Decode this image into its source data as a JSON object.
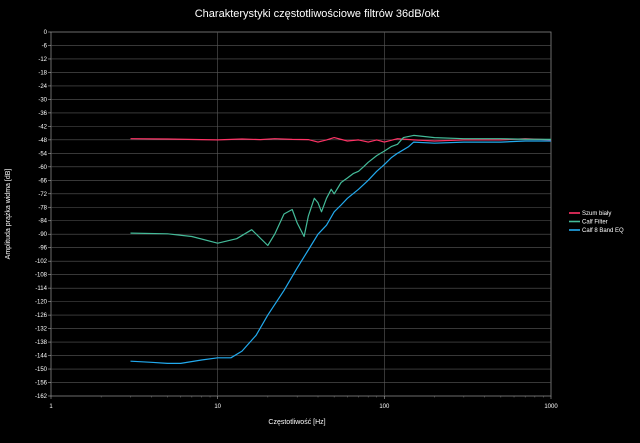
{
  "chart_data": {
    "type": "line",
    "title": "Charakterystyki częstotliwościowe filtrów 36dB/okt",
    "xlabel": "Częstotliwość [Hz]",
    "ylabel": "Amplituda prążka widma [dB]",
    "x_scale": "log",
    "xlim": [
      1,
      1000
    ],
    "ylim": [
      -162,
      0
    ],
    "x_ticks": [
      "1",
      "10",
      "100",
      "1000"
    ],
    "y_ticks": [
      "0",
      "-6",
      "-12",
      "-18",
      "-24",
      "-30",
      "-36",
      "-42",
      "-48",
      "-54",
      "-60",
      "-66",
      "-72",
      "-78",
      "-84",
      "-90",
      "-96",
      "-102",
      "-108",
      "-114",
      "-120",
      "-126",
      "-132",
      "-138",
      "-144",
      "-150",
      "-156",
      "-162"
    ],
    "grid": true,
    "legend_position": "right",
    "series": [
      {
        "name": "Szum biały",
        "color": "#ff3366",
        "x": [
          3,
          5,
          8,
          10,
          14,
          18,
          22,
          28,
          35,
          40,
          45,
          50,
          60,
          70,
          80,
          90,
          100,
          120,
          150,
          200,
          300,
          500,
          700,
          1000
        ],
        "y": [
          -47.5,
          -47.6,
          -47.9,
          -48,
          -47.6,
          -47.9,
          -47.5,
          -47.8,
          -47.9,
          -49,
          -48,
          -47,
          -48.5,
          -48,
          -49,
          -48,
          -49,
          -47.5,
          -48,
          -48.5,
          -48,
          -48,
          -47.5,
          -48
        ]
      },
      {
        "name": "Calf Filter",
        "color": "#44bb99",
        "x": [
          3,
          5,
          7,
          10,
          13,
          16,
          20,
          22,
          25,
          28,
          30,
          33,
          35,
          38,
          40,
          42,
          45,
          48,
          50,
          55,
          60,
          65,
          70,
          75,
          80,
          90,
          100,
          110,
          120,
          130,
          150,
          200,
          300,
          500,
          700,
          1000
        ],
        "y": [
          -89.5,
          -89.8,
          -91,
          -94,
          -92,
          -88,
          -95,
          -90,
          -81,
          -79,
          -85,
          -91,
          -82,
          -74,
          -76,
          -80,
          -74,
          -70,
          -72,
          -67,
          -65,
          -63,
          -62,
          -60,
          -58,
          -55,
          -53,
          -51,
          -50,
          -47,
          -46,
          -47,
          -47.5,
          -47.5,
          -47.7,
          -47.8
        ]
      },
      {
        "name": "Calf 8 Band EQ",
        "color": "#22aaee",
        "x": [
          3,
          4,
          5,
          6,
          8,
          10,
          12,
          14,
          17,
          20,
          25,
          30,
          35,
          40,
          45,
          50,
          55,
          60,
          70,
          80,
          90,
          100,
          110,
          120,
          140,
          150,
          200,
          300,
          500,
          700,
          1000
        ],
        "y": [
          -146.5,
          -147,
          -147.5,
          -147.5,
          -146,
          -145,
          -145,
          -142,
          -135,
          -126,
          -115,
          -105,
          -97,
          -90,
          -86,
          -80,
          -77,
          -74,
          -70,
          -66,
          -62,
          -59,
          -56,
          -54,
          -51,
          -49,
          -49.5,
          -49,
          -49,
          -48.5,
          -48.5
        ]
      }
    ]
  }
}
